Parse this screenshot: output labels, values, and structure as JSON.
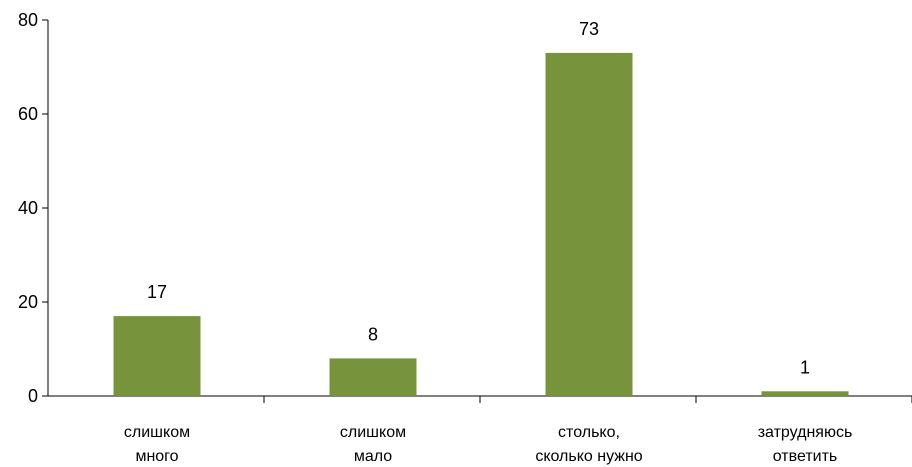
{
  "chart_data": {
    "type": "bar",
    "categories": [
      [
        "слишком",
        "много"
      ],
      [
        "слишком",
        "мало"
      ],
      [
        "столько,",
        "сколько нужно"
      ],
      [
        "затрудняюсь",
        "ответить"
      ]
    ],
    "values": [
      17,
      8,
      73,
      1
    ],
    "data_labels": [
      "17",
      "8",
      "73",
      "1"
    ],
    "ylim": [
      0,
      80
    ],
    "yticks": [
      0,
      20,
      40,
      60,
      80
    ],
    "ytick_labels": [
      "0",
      "20",
      "40",
      "60",
      "80"
    ],
    "title": "",
    "xlabel": "",
    "ylabel": "",
    "grid": false,
    "bar_color": "#77943d"
  }
}
